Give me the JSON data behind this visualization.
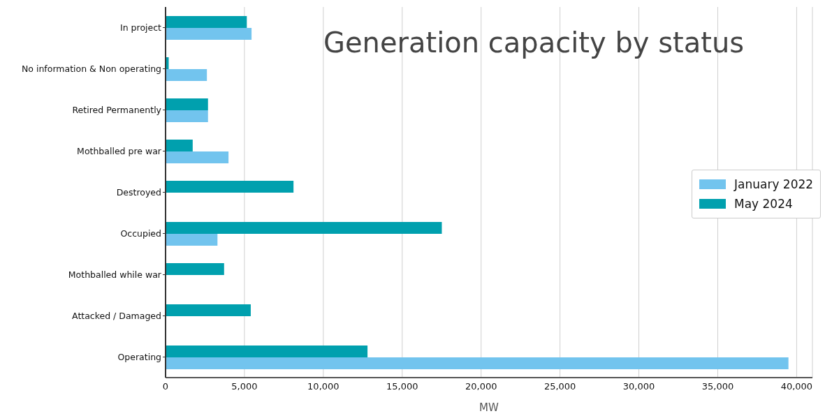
{
  "chart_data": {
    "type": "bar",
    "orientation": "horizontal",
    "title": "Generation capacity by status",
    "xlabel": "MW",
    "categories": [
      "In project",
      "No information & Non operating",
      "Retired Permanently",
      "Mothballed pre war",
      "Destroyed",
      "Occupied",
      "Mothballed while war",
      "Attacked / Damaged",
      "Operating"
    ],
    "series": [
      {
        "name": "January 2022",
        "color": "#72c4ee",
        "values": [
          5450,
          2620,
          2690,
          3990,
          null,
          3290,
          null,
          null,
          39480
        ]
      },
      {
        "name": "May 2024",
        "color": "#00a0ae",
        "values": [
          5150,
          200,
          2690,
          1720,
          8110,
          17510,
          3710,
          5400,
          12800
        ]
      }
    ],
    "xlim": [
      0,
      41000
    ],
    "xticks": [
      {
        "value": 0,
        "label": "0"
      },
      {
        "value": 5000,
        "label": "5,000"
      },
      {
        "value": 10000,
        "label": "10,000"
      },
      {
        "value": 15000,
        "label": "15,000"
      },
      {
        "value": 20000,
        "label": "20,000"
      },
      {
        "value": 25000,
        "label": "25,000"
      },
      {
        "value": 30000,
        "label": "30,000"
      },
      {
        "value": 35000,
        "label": "35,000"
      },
      {
        "value": 40000,
        "label": "40,000"
      }
    ],
    "grid": "x",
    "legend": "right"
  }
}
